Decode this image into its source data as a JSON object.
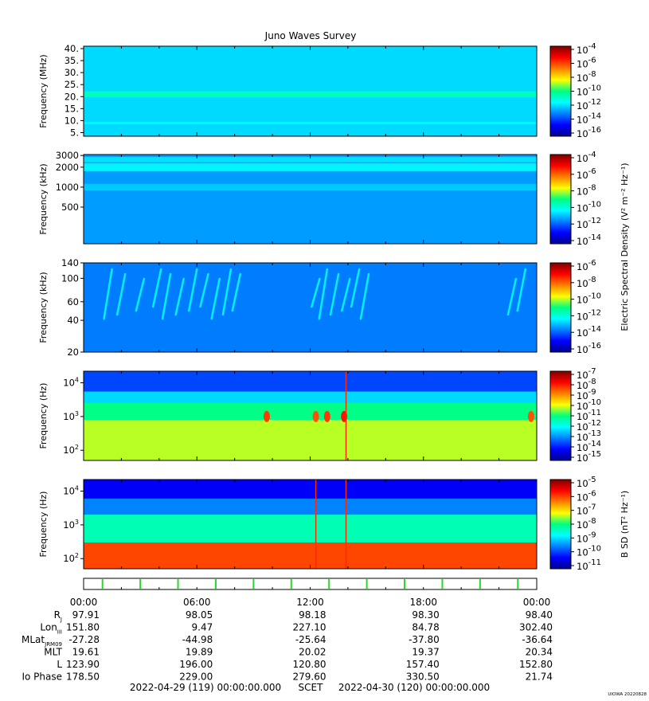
{
  "title": "Juno Waves Survey",
  "watermark": "UIOWA 20220828",
  "chart_data": [
    {
      "type": "heatmap",
      "ylabel": "Frequency (MHz)",
      "yscale": "linear",
      "ylim": [
        3.5,
        41
      ],
      "yticks": [
        {
          "v": 5,
          "l": "5."
        },
        {
          "v": 10,
          "l": "10."
        },
        {
          "v": 15,
          "l": "15."
        },
        {
          "v": 20,
          "l": "20."
        },
        {
          "v": 25,
          "l": "25."
        },
        {
          "v": 30,
          "l": "30."
        },
        {
          "v": 35,
          "l": "35."
        },
        {
          "v": 40,
          "l": "40."
        }
      ],
      "colorbar": {
        "label": "",
        "labels": [
          "10",
          "10",
          "10",
          "10",
          "10",
          "10",
          "10"
        ],
        "exponents": [
          "-4",
          "-6",
          "-8",
          "-10",
          "-12",
          "-14",
          "-16"
        ],
        "log_range": [
          -17,
          -4
        ]
      },
      "background_log_value": -12.6,
      "bands": [
        {
          "y": 21,
          "log_value": -11.3,
          "width": 1.2
        },
        {
          "y": 9,
          "log_value": -12.2,
          "width": 0.5
        }
      ]
    },
    {
      "type": "heatmap",
      "ylabel": "Frequency (kHz)",
      "yscale": "log",
      "ylim": [
        140,
        3100
      ],
      "yticks": [
        {
          "v": 500,
          "l": "500"
        },
        {
          "v": 1000,
          "l": "1000"
        },
        {
          "v": 2000,
          "l": "2000"
        },
        {
          "v": 3000,
          "l": "3000"
        }
      ],
      "colorbar": {
        "label": "Electric Spectral Density (V² m⁻² Hz⁻¹)",
        "labels": [
          "10",
          "10",
          "10",
          "10",
          "10",
          "10"
        ],
        "exponents": [
          "-4",
          "-6",
          "-8",
          "-10",
          "-12",
          "-14"
        ],
        "log_range": [
          -15,
          -3.5
        ]
      },
      "background_log_value": -11.8,
      "bands": [
        {
          "y": 2000,
          "log_value": -10.8,
          "width": 0.06
        },
        {
          "y": 2600,
          "log_value": -11.0,
          "width": 0.04
        },
        {
          "y": 1000,
          "log_value": -11.3,
          "width": 0.05
        }
      ]
    },
    {
      "type": "heatmap",
      "ylabel": "Frequency (kHz)",
      "yscale": "log",
      "ylim": [
        20,
        140
      ],
      "yticks": [
        {
          "v": 20,
          "l": "20"
        },
        {
          "v": 40,
          "l": "40"
        },
        {
          "v": 60,
          "l": "60"
        },
        {
          "v": 100,
          "l": "100"
        },
        {
          "v": 140,
          "l": "140"
        }
      ],
      "colorbar": {
        "label": "",
        "labels": [
          "10",
          "10",
          "10",
          "10",
          "10",
          "10"
        ],
        "exponents": [
          "-6",
          "-8",
          "-10",
          "-12",
          "-14",
          "-16"
        ],
        "log_range": [
          -16.5,
          -6
        ]
      },
      "background_log_value": -13.9,
      "bursts_hours": [
        1.5,
        2.2,
        3.2,
        4.1,
        4.6,
        5.3,
        6.0,
        6.6,
        7.2,
        7.8,
        8.3,
        12.5,
        12.9,
        13.5,
        14.1,
        14.6,
        15.1,
        22.9,
        23.4
      ],
      "burst_log_value": -12.7
    },
    {
      "type": "heatmap",
      "ylabel": "Frequency (Hz)",
      "yscale": "log",
      "ylim": [
        50,
        22000
      ],
      "yticks": [
        {
          "v": 100,
          "l": "10",
          "e": "2"
        },
        {
          "v": 1000,
          "l": "10",
          "e": "3"
        },
        {
          "v": 10000,
          "l": "10",
          "e": "4"
        }
      ],
      "colorbar": {
        "label": "",
        "labels": [
          "10",
          "10",
          "10",
          "10",
          "10",
          "10",
          "10",
          "10",
          "10"
        ],
        "exponents": [
          "-7",
          "-8",
          "-9",
          "-10",
          "-11",
          "-12",
          "-13",
          "-14",
          "-15"
        ],
        "log_range": [
          -15.2,
          -6.9
        ]
      },
      "layers": [
        {
          "from": 22000,
          "to": 5500,
          "log_value": -13.6
        },
        {
          "from": 5500,
          "to": 2500,
          "log_value": -12.4
        },
        {
          "from": 2500,
          "to": 800,
          "log_value": -11.1
        },
        {
          "from": 800,
          "to": 50,
          "log_value": -10.3
        }
      ],
      "hot_spots": [
        {
          "hour": 9.7,
          "freq": 1000,
          "log_value": -8.4
        },
        {
          "hour": 12.3,
          "freq": 1000,
          "log_value": -8.6
        },
        {
          "hour": 12.9,
          "freq": 1000,
          "log_value": -8.4
        },
        {
          "hour": 13.8,
          "freq": 1000,
          "log_value": -8.1
        },
        {
          "hour": 23.7,
          "freq": 1000,
          "log_value": -8.6
        }
      ],
      "spikes_hours": [
        13.9
      ]
    },
    {
      "type": "heatmap",
      "ylabel": "Frequency (Hz)",
      "yscale": "log",
      "ylim": [
        50,
        22000
      ],
      "yticks": [
        {
          "v": 100,
          "l": "10",
          "e": "2"
        },
        {
          "v": 1000,
          "l": "10",
          "e": "3"
        },
        {
          "v": 10000,
          "l": "10",
          "e": "4"
        }
      ],
      "colorbar": {
        "label": "B SD (nT² Hz⁻¹)",
        "labels": [
          "10",
          "10",
          "10",
          "10",
          "10",
          "10",
          "10"
        ],
        "exponents": [
          "-5",
          "-6",
          "-7",
          "-8",
          "-9",
          "-10",
          "-11"
        ],
        "log_range": [
          -11.2,
          -4.5
        ]
      },
      "layers": [
        {
          "from": 22000,
          "to": 6000,
          "log_value": -10.4
        },
        {
          "from": 6000,
          "to": 2000,
          "log_value": -9.5
        },
        {
          "from": 2000,
          "to": 300,
          "log_value": -8.2
        },
        {
          "from": 300,
          "to": 50,
          "log_value": -5.8
        }
      ],
      "spikes_hours": [
        12.3,
        13.9
      ]
    }
  ],
  "time_axis": {
    "ticks": [
      "00:00",
      "06:00",
      "12:00",
      "18:00",
      "00:00"
    ],
    "rows": [
      {
        "label": "R",
        "sub": "J",
        "values": [
          "97.91",
          "98.05",
          "98.18",
          "98.30",
          "98.40"
        ]
      },
      {
        "label": "Lon",
        "sub": "III",
        "values": [
          "151.80",
          "9.47",
          "227.10",
          "84.78",
          "302.40"
        ]
      },
      {
        "label": "MLat",
        "sub": "JRM09",
        "values": [
          "-27.28",
          "-44.98",
          "-25.64",
          "-37.80",
          "-36.64"
        ]
      },
      {
        "label": "MLT",
        "sub": "",
        "values": [
          "19.61",
          "19.89",
          "20.02",
          "19.37",
          "20.34"
        ]
      },
      {
        "label": "L",
        "sub": "",
        "values": [
          "123.90",
          "196.00",
          "120.80",
          "157.40",
          "152.80"
        ]
      },
      {
        "label": "Io Phase",
        "sub": "",
        "values": [
          "178.50",
          "229.00",
          "279.60",
          "330.50",
          "21.74"
        ]
      }
    ],
    "footer_start": "2022-04-29 (119) 00:00:00.000",
    "footer_mid": "SCET",
    "footer_end": "2022-04-30 (120) 00:00:00.000",
    "marker_hours": [
      1.0,
      3.0,
      5.0,
      7.0,
      9.0,
      11.0,
      13.0,
      15.0,
      17.0,
      19.0,
      21.0,
      23.0
    ]
  }
}
